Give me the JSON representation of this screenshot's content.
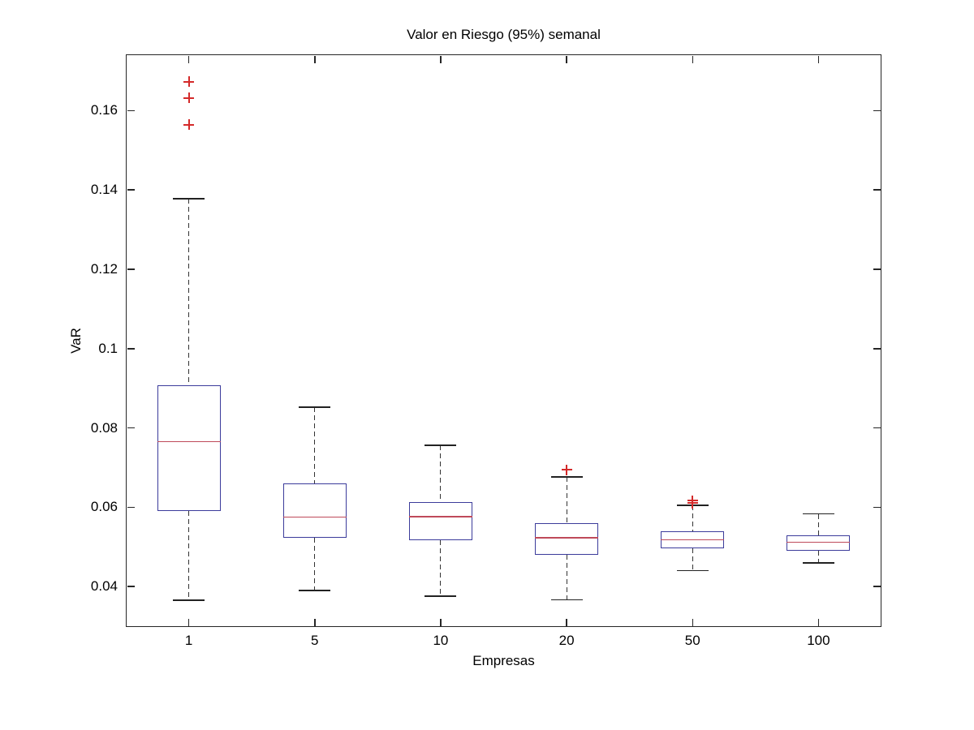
{
  "chart_data": {
    "type": "boxplot",
    "title": "Valor en Riesgo (95%) semanal",
    "xlabel": "Empresas",
    "ylabel": "VaR",
    "categories": [
      "1",
      "5",
      "10",
      "20",
      "50",
      "100"
    ],
    "ylim": [
      0.0298,
      0.1742
    ],
    "y_ticks": {
      "values": [
        0.04,
        0.06,
        0.08,
        0.1,
        0.12,
        0.14,
        0.16
      ],
      "labels": [
        "0.04",
        "0.06",
        "0.08",
        "0.1",
        "0.12",
        "0.14",
        "0.16"
      ]
    },
    "grid": false,
    "legend": null,
    "colors": {
      "box": "#3b3b9b",
      "median": "#bf4a5a",
      "whisker": "#333333",
      "cap": "#222222",
      "outlier": "#d42a2a",
      "axis": "#262626"
    },
    "series": [
      {
        "category": "1",
        "whisker_low": 0.0365,
        "q1": 0.059,
        "median": 0.0765,
        "q3": 0.0908,
        "whisker_high": 0.1378,
        "outliers": [
          0.1565,
          0.1632,
          0.1673
        ]
      },
      {
        "category": "5",
        "whisker_low": 0.039,
        "q1": 0.0523,
        "median": 0.0575,
        "q3": 0.066,
        "whisker_high": 0.0852,
        "outliers": []
      },
      {
        "category": "10",
        "whisker_low": 0.0376,
        "q1": 0.0517,
        "median": 0.0576,
        "q3": 0.0613,
        "whisker_high": 0.0756,
        "outliers": []
      },
      {
        "category": "20",
        "whisker_low": 0.0367,
        "q1": 0.048,
        "median": 0.0523,
        "q3": 0.056,
        "whisker_high": 0.0676,
        "outliers": [
          0.0694
        ]
      },
      {
        "category": "50",
        "whisker_low": 0.044,
        "q1": 0.0497,
        "median": 0.0518,
        "q3": 0.054,
        "whisker_high": 0.0605,
        "outliers": [
          0.061,
          0.0617
        ]
      },
      {
        "category": "100",
        "whisker_low": 0.046,
        "q1": 0.049,
        "median": 0.0512,
        "q3": 0.053,
        "whisker_high": 0.0583,
        "outliers": []
      }
    ]
  }
}
